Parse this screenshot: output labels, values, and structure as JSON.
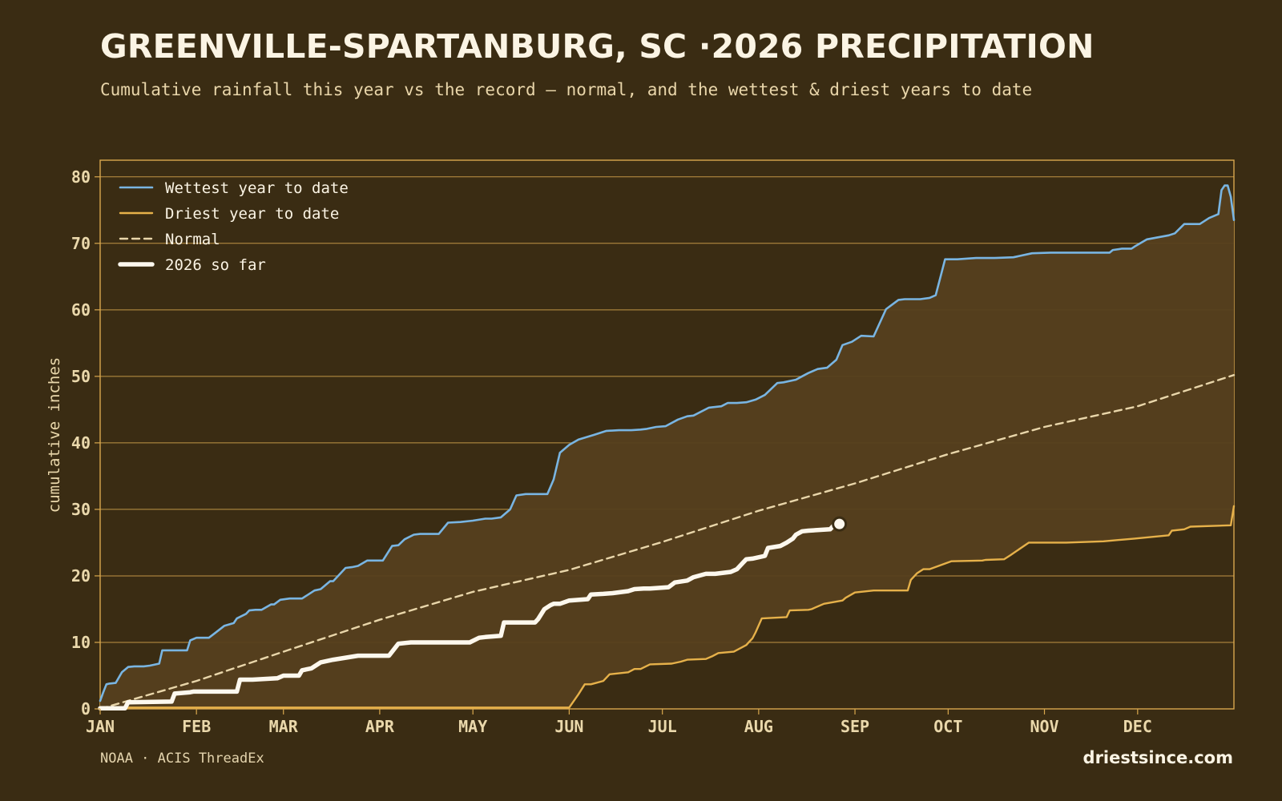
{
  "header": {
    "title": "GREENVILLE-SPARTANBURG, SC ·2026 PRECIPITATION",
    "subtitle": "Cumulative rainfall this year vs the record — normal, and the wettest & driest years to date"
  },
  "footer": {
    "source": "NOAA · ACIS ThreadEx",
    "brand": "driestsince.com"
  },
  "colors": {
    "background": "#3a2c13",
    "band_fill": "#553f1e",
    "grid": "#d9a84e",
    "wettest": "#79b5e2",
    "driest": "#e6b14a",
    "normal": "#e9d6aa",
    "current": "#fdf8ee"
  },
  "chart_data": {
    "type": "line",
    "xlabel": "",
    "ylabel": "cumulative inches",
    "ylim": [
      0,
      82.5
    ],
    "yticks": [
      0,
      10,
      20,
      30,
      40,
      50,
      60,
      70,
      80
    ],
    "x_unit": "day of year",
    "xlim": [
      1,
      366
    ],
    "month_ticks": [
      {
        "label": "JAN",
        "day": 1
      },
      {
        "label": "FEB",
        "day": 32
      },
      {
        "label": "MAR",
        "day": 60
      },
      {
        "label": "APR",
        "day": 91
      },
      {
        "label": "MAY",
        "day": 121
      },
      {
        "label": "JUN",
        "day": 152
      },
      {
        "label": "JUL",
        "day": 182
      },
      {
        "label": "AUG",
        "day": 213
      },
      {
        "label": "SEP",
        "day": 244
      },
      {
        "label": "OCT",
        "day": 274
      },
      {
        "label": "NOV",
        "day": 305
      },
      {
        "label": "DEC",
        "day": 335
      }
    ],
    "grid": "horizontal",
    "legend_position": "top-left",
    "shaded_band": "between driest and wettest",
    "series": [
      {
        "name": "Wettest year to date",
        "style": "solid",
        "x": [
          1,
          2,
          3,
          4,
          6,
          8,
          10,
          12,
          14,
          15,
          17,
          20,
          21,
          23,
          26,
          29,
          30,
          32,
          34,
          36,
          38,
          41,
          44,
          45,
          48,
          49,
          51,
          53,
          56,
          57,
          59,
          62,
          66,
          70,
          72,
          75,
          76,
          80,
          82,
          84,
          87,
          90,
          92,
          95,
          97,
          99,
          102,
          104,
          106,
          108,
          110,
          113,
          117,
          121,
          125,
          127,
          130,
          133,
          135,
          138,
          141,
          145,
          147,
          149,
          152,
          155,
          160,
          164,
          168,
          172,
          175,
          177,
          180,
          183,
          187,
          190,
          192,
          197,
          201,
          203,
          206,
          209,
          212,
          215,
          219,
          221,
          225,
          227,
          229,
          232,
          235,
          238,
          240,
          243,
          246,
          250,
          254,
          258,
          260,
          262,
          265,
          268,
          270,
          273,
          277,
          283,
          289,
          295,
          301,
          307,
          313,
          319,
          321,
          326,
          327,
          330,
          333,
          334,
          338,
          345,
          347,
          350,
          355,
          358,
          361,
          362,
          363,
          364,
          365,
          366
        ],
        "y": [
          1.2,
          2.5,
          3.7,
          3.8,
          3.9,
          5.5,
          6.3,
          6.4,
          6.4,
          6.4,
          6.5,
          6.8,
          8.8,
          8.8,
          8.8,
          8.8,
          10.3,
          10.7,
          10.7,
          10.7,
          11.4,
          12.5,
          12.9,
          13.6,
          14.3,
          14.8,
          14.9,
          14.9,
          15.7,
          15.7,
          16.4,
          16.6,
          16.6,
          17.8,
          18.0,
          19.2,
          19.2,
          21.2,
          21.3,
          21.5,
          22.3,
          22.3,
          22.3,
          24.5,
          24.6,
          25.5,
          26.2,
          26.3,
          26.3,
          26.3,
          26.3,
          28.0,
          28.1,
          28.3,
          28.6,
          28.6,
          28.8,
          30.0,
          32.1,
          32.3,
          32.3,
          32.3,
          34.5,
          38.5,
          39.7,
          40.5,
          41.2,
          41.8,
          41.9,
          41.9,
          42.0,
          42.1,
          42.4,
          42.5,
          43.5,
          44.0,
          44.1,
          45.3,
          45.5,
          46.0,
          46.0,
          46.1,
          46.5,
          47.2,
          49.0,
          49.1,
          49.5,
          50.0,
          50.5,
          51.1,
          51.3,
          52.5,
          54.7,
          55.2,
          56.1,
          56.0,
          60.1,
          61.5,
          61.6,
          61.6,
          61.6,
          61.8,
          62.2,
          67.6,
          67.6,
          67.8,
          67.8,
          67.9,
          68.5,
          68.6,
          68.6,
          68.6,
          68.6,
          68.6,
          69.0,
          69.2,
          69.2,
          69.5,
          70.6,
          71.2,
          71.5,
          72.9,
          72.9,
          73.8,
          74.4,
          78.0,
          78.7,
          78.7,
          77.0,
          73.5
        ]
      },
      {
        "name": "Driest year to date",
        "style": "solid",
        "x": [
          1,
          152,
          155,
          157,
          159,
          163,
          165,
          171,
          173,
          175,
          178,
          185,
          188,
          190,
          196,
          198,
          200,
          205,
          209,
          210,
          211,
          212,
          214,
          222,
          223,
          229,
          230,
          234,
          240,
          241,
          244,
          250,
          252,
          261,
          262,
          264,
          266,
          268,
          275,
          285,
          286,
          292,
          293,
          294,
          300,
          312,
          324,
          334,
          345,
          346,
          350,
          352,
          365,
          366
        ],
        "y": [
          0.2,
          0.2,
          2.2,
          3.7,
          3.7,
          4.2,
          5.2,
          5.5,
          6.0,
          6.0,
          6.7,
          6.8,
          7.1,
          7.4,
          7.5,
          7.9,
          8.4,
          8.6,
          9.6,
          10.1,
          10.6,
          11.5,
          13.6,
          13.8,
          14.8,
          14.9,
          15.0,
          15.8,
          16.3,
          16.7,
          17.5,
          17.8,
          17.8,
          17.8,
          19.4,
          20.4,
          21.0,
          21.0,
          22.2,
          22.3,
          22.4,
          22.5,
          22.8,
          23.1,
          25.0,
          25.0,
          25.2,
          25.6,
          26.1,
          26.8,
          27.0,
          27.4,
          27.6,
          30.5
        ]
      },
      {
        "name": "Normal",
        "style": "dashed",
        "x": [
          1,
          32,
          60,
          91,
          121,
          152,
          182,
          213,
          244,
          274,
          305,
          335,
          366
        ],
        "y": [
          0.0,
          4.2,
          8.6,
          13.4,
          17.6,
          20.9,
          25.1,
          29.8,
          33.9,
          38.3,
          42.4,
          45.5,
          50.2
        ]
      },
      {
        "name": "2026 so far",
        "style": "thick",
        "x": [
          1,
          9,
          10,
          24,
          25,
          30,
          31,
          45,
          46,
          50,
          58,
          60,
          65,
          66,
          69,
          72,
          76,
          80,
          84,
          90,
          94,
          97,
          101,
          110,
          120,
          123,
          125,
          130,
          131,
          135,
          141,
          142,
          144,
          146,
          147,
          149,
          152,
          158,
          159,
          163,
          166,
          171,
          173,
          176,
          178,
          184,
          186,
          190,
          192,
          196,
          199,
          204,
          206,
          208,
          209,
          211,
          215,
          216,
          220,
          222,
          224,
          225,
          227,
          229,
          236,
          237,
          239
        ],
        "y": [
          0.1,
          0.1,
          1.0,
          1.1,
          2.3,
          2.5,
          2.6,
          2.6,
          4.4,
          4.4,
          4.6,
          5.0,
          5.0,
          5.8,
          6.1,
          7.0,
          7.4,
          7.7,
          8.0,
          8.0,
          8.0,
          9.8,
          10.0,
          10.0,
          10.0,
          10.7,
          10.8,
          11.0,
          13.0,
          13.0,
          13.0,
          13.5,
          15.0,
          15.6,
          15.8,
          15.8,
          16.3,
          16.5,
          17.2,
          17.3,
          17.4,
          17.7,
          18.0,
          18.1,
          18.1,
          18.3,
          19.0,
          19.3,
          19.8,
          20.3,
          20.3,
          20.6,
          21.0,
          22.0,
          22.5,
          22.6,
          23.0,
          24.2,
          24.5,
          25.0,
          25.6,
          26.2,
          26.7,
          26.8,
          27.0,
          27.5,
          27.8
        ]
      }
    ],
    "current_marker": {
      "x": 239,
      "y": 27.8
    }
  }
}
